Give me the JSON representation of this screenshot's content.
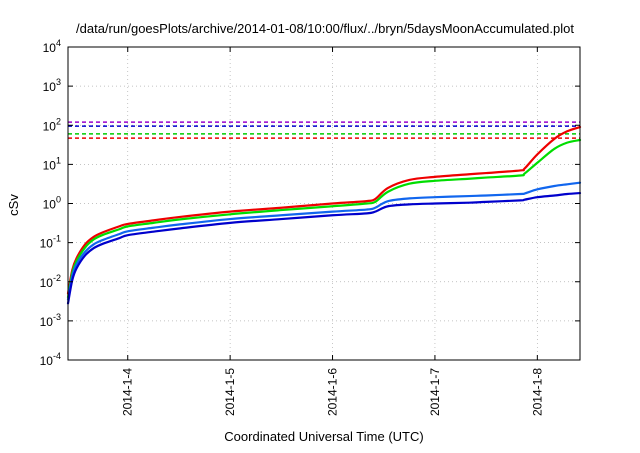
{
  "chart_data": {
    "type": "line",
    "title": "/data/run/goesPlots/archive/2014-01-08/10:00/flux/../bryn/5daysMoonAccumulated.plot",
    "xlabel": "Coordinated Universal Time (UTC)",
    "ylabel": "cSv",
    "x_range": [
      "2014-01-03T10:00",
      "2014-01-08T10:00"
    ],
    "ylim": [
      0.0001,
      10000
    ],
    "yscale": "log",
    "grid": true,
    "x_ticks": [
      {
        "label": "2014-1-4",
        "value": "2014-01-04T00:00"
      },
      {
        "label": "2014-1-5",
        "value": "2014-01-05T00:00"
      },
      {
        "label": "2014-1-6",
        "value": "2014-01-06T00:00"
      },
      {
        "label": "2014-1-7",
        "value": "2014-01-07T00:00"
      },
      {
        "label": "2014-1-8",
        "value": "2014-01-08T00:00"
      }
    ],
    "y_ticks": [
      {
        "base": "10",
        "exp": "-4",
        "value": 0.0001
      },
      {
        "base": "10",
        "exp": "-3",
        "value": 0.001
      },
      {
        "base": "10",
        "exp": "-2",
        "value": 0.01
      },
      {
        "base": "10",
        "exp": "-1",
        "value": 0.1
      },
      {
        "base": "10",
        "exp": "0",
        "value": 1
      },
      {
        "base": "10",
        "exp": "1",
        "value": 10
      },
      {
        "base": "10",
        "exp": "2",
        "value": 100
      },
      {
        "base": "10",
        "exp": "3",
        "value": 1000
      },
      {
        "base": "10",
        "exp": "4",
        "value": 10000
      }
    ],
    "thresholds": [
      {
        "y": 120,
        "color": "#9900cc"
      },
      {
        "y": 95,
        "color": "#0000cc"
      },
      {
        "y": 60,
        "color": "#00cc00"
      },
      {
        "y": 47,
        "color": "#ee0000"
      }
    ],
    "series": [
      {
        "color": "#ee0000",
        "x": [
          "2014-01-03T10:00",
          "2014-01-03T11:00",
          "2014-01-03T12:00",
          "2014-01-03T14:00",
          "2014-01-03T16:00",
          "2014-01-03T18:00",
          "2014-01-03T22:00",
          "2014-01-04T00:00",
          "2014-01-04T06:00",
          "2014-01-04T12:00",
          "2014-01-05T00:00",
          "2014-01-05T12:00",
          "2014-01-06T00:00",
          "2014-01-06T08:00",
          "2014-01-06T10:00",
          "2014-01-06T13:00",
          "2014-01-06T18:00",
          "2014-01-07T00:00",
          "2014-01-07T08:00",
          "2014-01-07T12:00",
          "2014-01-07T20:00",
          "2014-01-07T21:00",
          "2014-01-08T00:00",
          "2014-01-08T04:00",
          "2014-01-08T07:00",
          "2014-01-08T10:00"
        ],
        "y": [
          0.005,
          0.02,
          0.04,
          0.09,
          0.14,
          0.18,
          0.26,
          0.3,
          0.37,
          0.45,
          0.62,
          0.78,
          1.0,
          1.15,
          1.3,
          2.5,
          4.0,
          4.8,
          5.6,
          6.0,
          7.0,
          7.8,
          18,
          45,
          70,
          90
        ]
      },
      {
        "color": "#00dd00",
        "x": [
          "2014-01-03T10:00",
          "2014-01-03T11:00",
          "2014-01-03T12:00",
          "2014-01-03T14:00",
          "2014-01-03T16:00",
          "2014-01-03T18:00",
          "2014-01-03T22:00",
          "2014-01-04T00:00",
          "2014-01-04T06:00",
          "2014-01-04T12:00",
          "2014-01-05T00:00",
          "2014-01-05T12:00",
          "2014-01-06T00:00",
          "2014-01-06T08:00",
          "2014-01-06T10:00",
          "2014-01-06T13:00",
          "2014-01-06T18:00",
          "2014-01-07T00:00",
          "2014-01-07T08:00",
          "2014-01-07T12:00",
          "2014-01-07T20:00",
          "2014-01-07T21:00",
          "2014-01-08T00:00",
          "2014-01-08T04:00",
          "2014-01-08T07:00",
          "2014-01-08T10:00"
        ],
        "y": [
          0.004,
          0.017,
          0.034,
          0.075,
          0.12,
          0.155,
          0.22,
          0.26,
          0.32,
          0.39,
          0.53,
          0.68,
          0.85,
          1.0,
          1.1,
          2.0,
          3.2,
          3.8,
          4.3,
          4.6,
          5.2,
          5.8,
          11,
          25,
          36,
          42
        ]
      },
      {
        "color": "#1166ee",
        "x": [
          "2014-01-03T10:00",
          "2014-01-03T11:00",
          "2014-01-03T12:00",
          "2014-01-03T14:00",
          "2014-01-03T16:00",
          "2014-01-03T18:00",
          "2014-01-03T22:00",
          "2014-01-04T00:00",
          "2014-01-04T06:00",
          "2014-01-04T12:00",
          "2014-01-05T00:00",
          "2014-01-05T12:00",
          "2014-01-06T00:00",
          "2014-01-06T08:00",
          "2014-01-06T10:00",
          "2014-01-06T13:00",
          "2014-01-06T18:00",
          "2014-01-07T00:00",
          "2014-01-07T08:00",
          "2014-01-07T12:00",
          "2014-01-07T20:00",
          "2014-01-07T21:00",
          "2014-01-08T00:00",
          "2014-01-08T04:00",
          "2014-01-08T07:00",
          "2014-01-08T10:00"
        ],
        "y": [
          0.0035,
          0.014,
          0.028,
          0.058,
          0.09,
          0.115,
          0.165,
          0.195,
          0.24,
          0.29,
          0.4,
          0.5,
          0.62,
          0.7,
          0.78,
          1.15,
          1.35,
          1.45,
          1.55,
          1.6,
          1.75,
          1.8,
          2.3,
          2.8,
          3.1,
          3.4
        ]
      },
      {
        "color": "#0000cc",
        "x": [
          "2014-01-03T10:00",
          "2014-01-03T11:00",
          "2014-01-03T12:00",
          "2014-01-03T14:00",
          "2014-01-03T16:00",
          "2014-01-03T18:00",
          "2014-01-03T22:00",
          "2014-01-04T00:00",
          "2014-01-04T06:00",
          "2014-01-04T12:00",
          "2014-01-05T00:00",
          "2014-01-05T12:00",
          "2014-01-06T00:00",
          "2014-01-06T08:00",
          "2014-01-06T10:00",
          "2014-01-06T13:00",
          "2014-01-06T18:00",
          "2014-01-07T00:00",
          "2014-01-07T08:00",
          "2014-01-07T12:00",
          "2014-01-07T20:00",
          "2014-01-07T21:00",
          "2014-01-08T00:00",
          "2014-01-08T04:00",
          "2014-01-08T07:00",
          "2014-01-08T10:00"
        ],
        "y": [
          0.0028,
          0.011,
          0.022,
          0.047,
          0.072,
          0.092,
          0.13,
          0.155,
          0.19,
          0.23,
          0.32,
          0.4,
          0.5,
          0.56,
          0.62,
          0.85,
          0.95,
          1.0,
          1.05,
          1.1,
          1.2,
          1.25,
          1.45,
          1.6,
          1.75,
          1.85
        ]
      }
    ]
  }
}
